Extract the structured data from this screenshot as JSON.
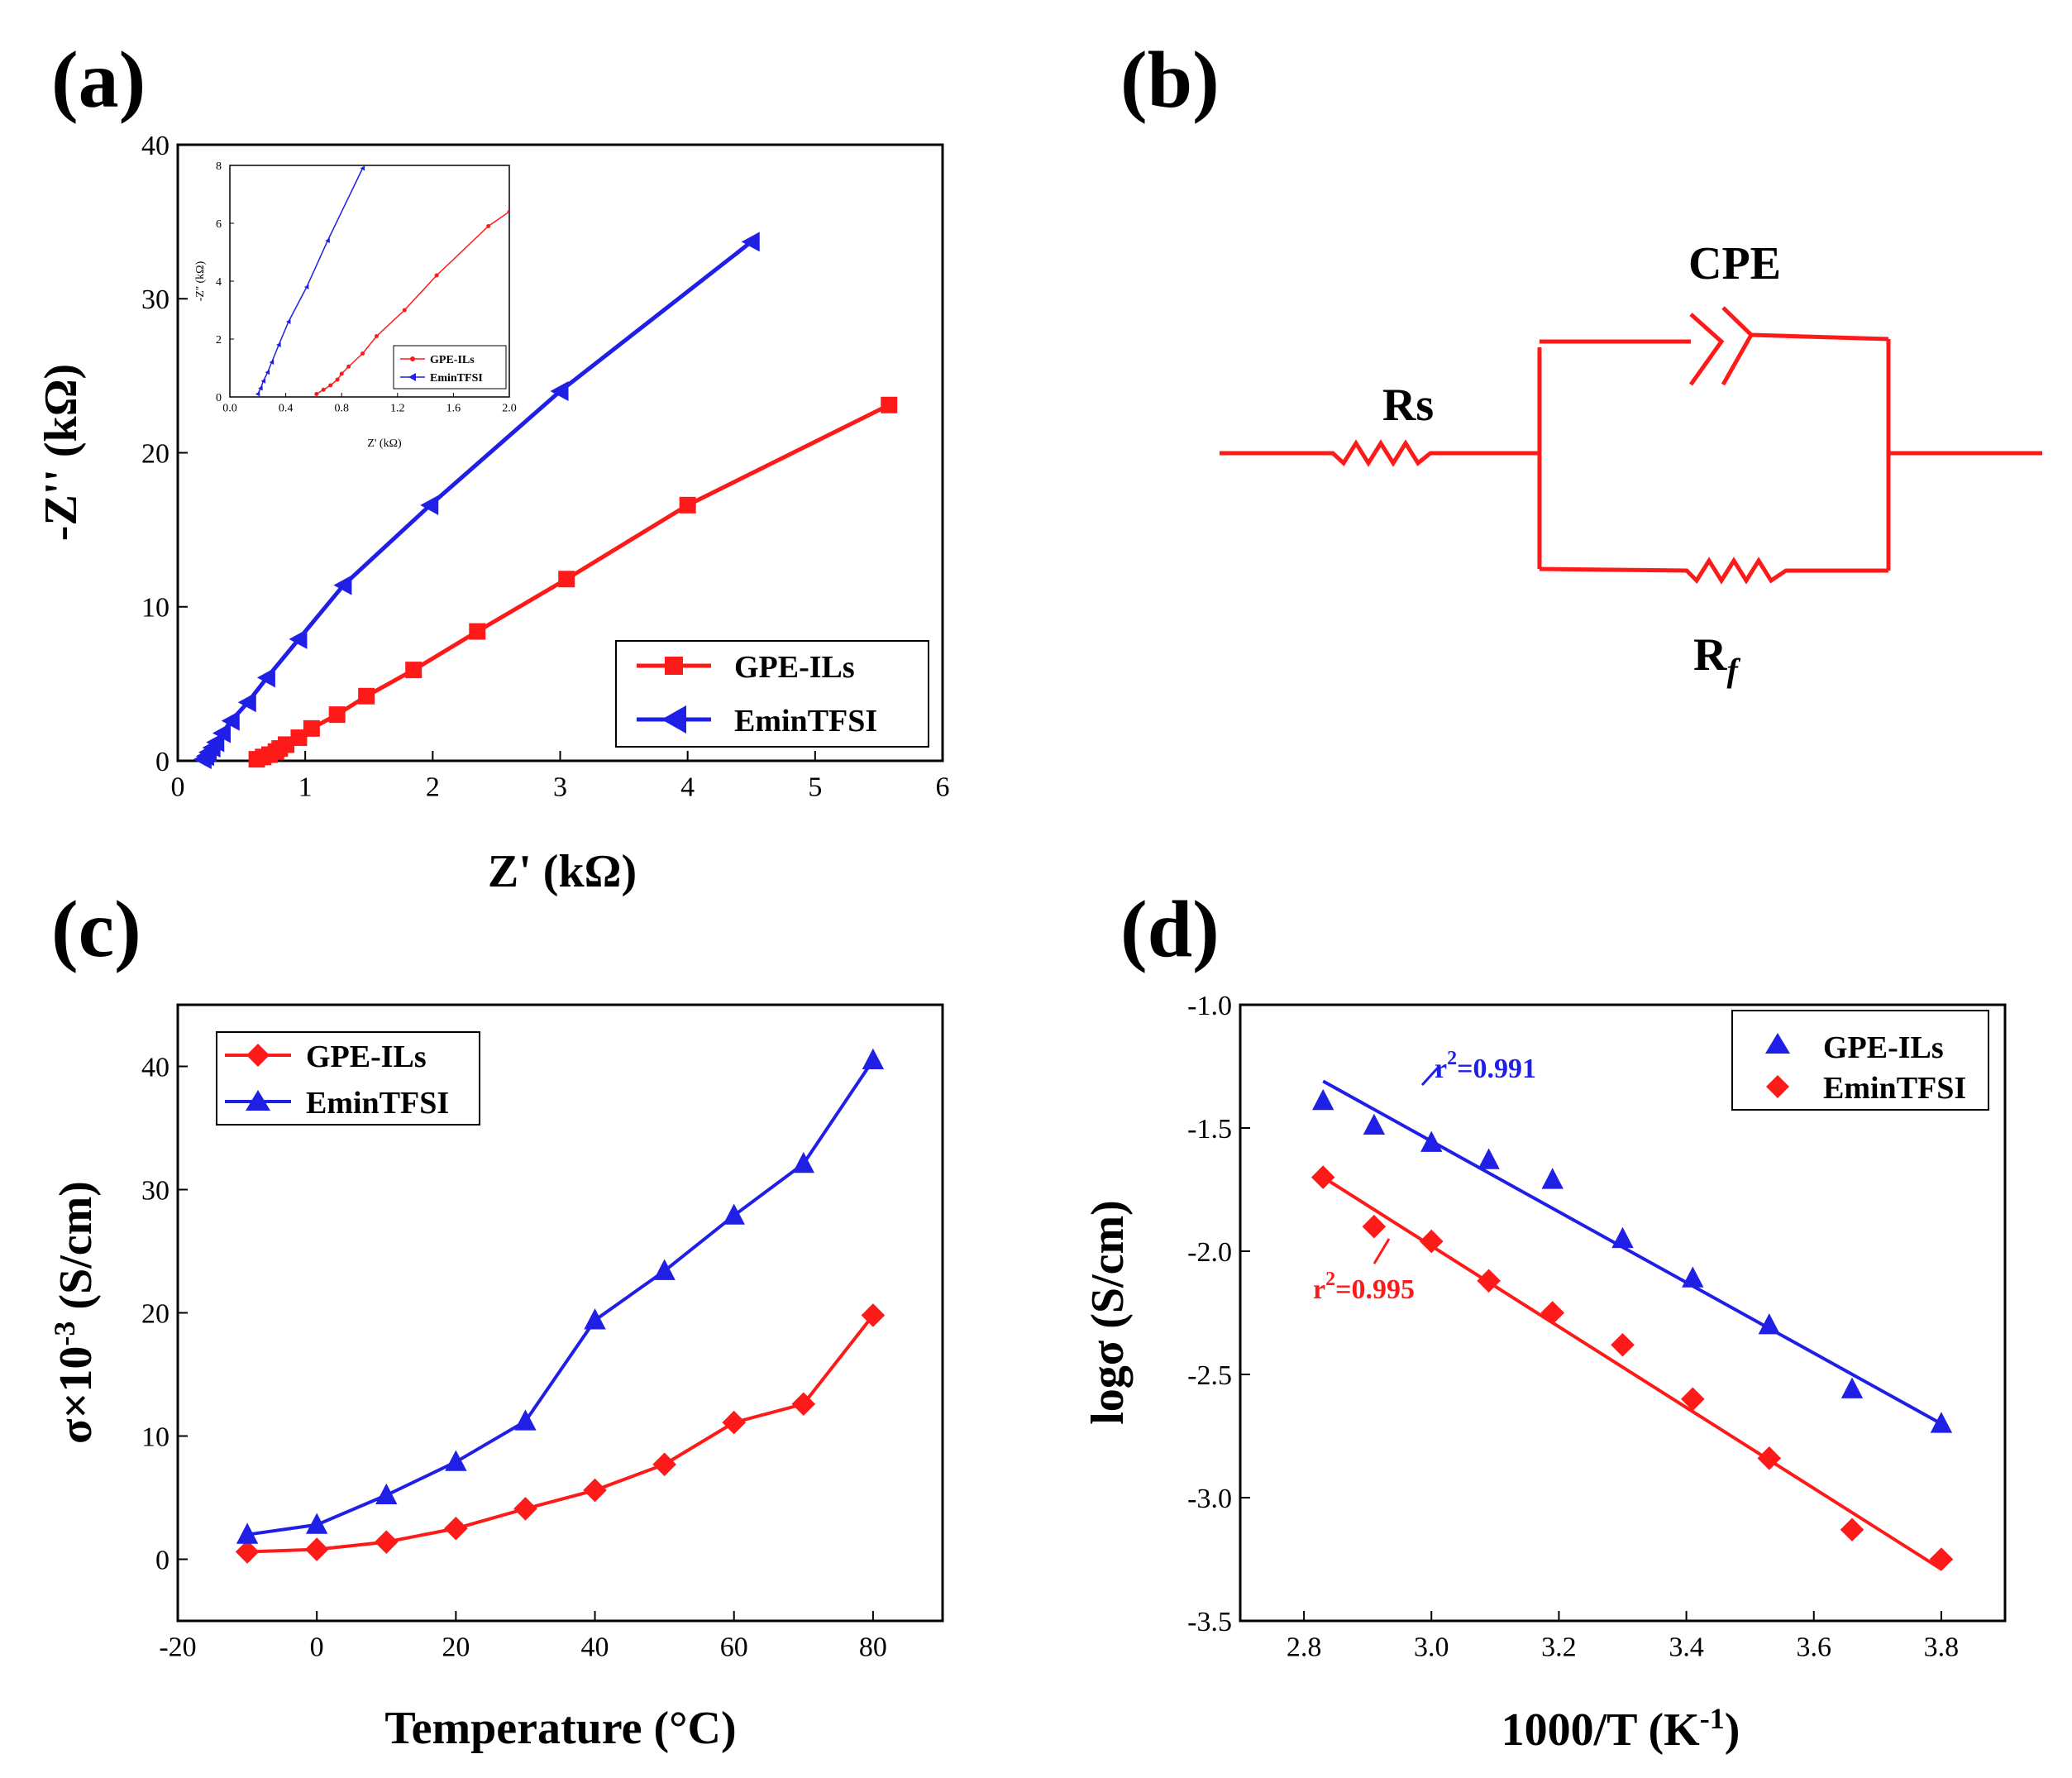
{
  "panel_labels": {
    "a": "(a)",
    "b": "(b)",
    "c": "(c)",
    "d": "(d)"
  },
  "colors": {
    "red": "#ff1a1a",
    "blue": "#1f1fe6",
    "black": "#000000"
  },
  "chart_data": [
    {
      "id": "a",
      "type": "line",
      "title": "",
      "xlabel": "Z' (kΩ)",
      "ylabel": "-Z'' (kΩ)",
      "xlim": [
        0,
        6
      ],
      "ylim": [
        0,
        40
      ],
      "xticks": [
        0,
        1,
        2,
        3,
        4,
        5,
        6
      ],
      "yticks": [
        0,
        10,
        20,
        30,
        40
      ],
      "legend_position": "bottom-right",
      "series": [
        {
          "name": "GPE-ILs",
          "color": "#ff1a1a",
          "marker": "square",
          "x": [
            0.62,
            0.67,
            0.72,
            0.77,
            0.8,
            0.85,
            0.95,
            1.05,
            1.25,
            1.48,
            1.85,
            2.35,
            3.05,
            4.0,
            5.58
          ],
          "y": [
            0.1,
            0.25,
            0.4,
            0.6,
            0.8,
            1.05,
            1.5,
            2.1,
            3.0,
            4.2,
            5.9,
            8.4,
            11.8,
            16.6,
            23.1
          ]
        },
        {
          "name": "EminTFSI",
          "color": "#1f1fe6",
          "marker": "triangle-left",
          "x": [
            0.2,
            0.22,
            0.24,
            0.27,
            0.3,
            0.35,
            0.42,
            0.55,
            0.7,
            0.95,
            1.3,
            1.98,
            3.0,
            4.5
          ],
          "y": [
            0.1,
            0.3,
            0.55,
            0.85,
            1.2,
            1.8,
            2.6,
            3.8,
            5.4,
            7.9,
            11.4,
            16.6,
            24.0,
            33.7
          ]
        }
      ],
      "inset": {
        "xlabel": "Z' (kΩ)",
        "ylabel": "-Z'' (kΩ)",
        "xlim": [
          0,
          2.0
        ],
        "ylim": [
          0,
          8
        ],
        "xticks": [
          "0.0",
          "0.4",
          "0.8",
          "1.2",
          "1.6",
          "2.0"
        ],
        "yticks": [
          "0",
          "2",
          "4",
          "6",
          "8"
        ],
        "legend_position": "bottom-right",
        "series": [
          {
            "name": "GPE-ILs",
            "color": "#ff1a1a",
            "x": [
              0.62,
              0.67,
              0.72,
              0.77,
              0.8,
              0.85,
              0.95,
              1.05,
              1.25,
              1.48,
              1.85,
              2.0
            ],
            "y": [
              0.1,
              0.25,
              0.4,
              0.6,
              0.8,
              1.05,
              1.5,
              2.1,
              3.0,
              4.2,
              5.9,
              6.4
            ]
          },
          {
            "name": "EminTFSI",
            "color": "#1f1fe6",
            "x": [
              0.2,
              0.22,
              0.24,
              0.27,
              0.3,
              0.35,
              0.42,
              0.55,
              0.7,
              0.95
            ],
            "y": [
              0.1,
              0.3,
              0.55,
              0.85,
              1.2,
              1.8,
              2.6,
              3.8,
              5.4,
              7.9
            ]
          }
        ]
      }
    },
    {
      "id": "c",
      "type": "line",
      "title": "",
      "xlabel": "Temperature (°C)",
      "ylabel_main": "σ×10",
      "ylabel_sup": "-3",
      "ylabel_rest": " (S/cm)",
      "xlim": [
        -20,
        90
      ],
      "ylim": [
        -5,
        45
      ],
      "xticks": [
        -20,
        0,
        20,
        40,
        60,
        80
      ],
      "yticks": [
        0,
        10,
        20,
        30,
        40
      ],
      "legend_position": "top-left",
      "series": [
        {
          "name": "GPE-ILs",
          "color": "#ff1a1a",
          "marker": "diamond",
          "x": [
            -10,
            0,
            10,
            20,
            30,
            40,
            50,
            60,
            70,
            80
          ],
          "y": [
            0.6,
            0.8,
            1.4,
            2.5,
            4.1,
            5.6,
            7.7,
            11.1,
            12.6,
            19.8
          ]
        },
        {
          "name": "EminTFSI",
          "color": "#1f1fe6",
          "marker": "triangle-up",
          "x": [
            -10,
            0,
            10,
            20,
            30,
            40,
            50,
            60,
            70,
            80
          ],
          "y": [
            2.0,
            2.8,
            5.2,
            7.9,
            11.2,
            19.4,
            23.4,
            27.9,
            32.1,
            40.5
          ]
        }
      ]
    },
    {
      "id": "d",
      "type": "scatter",
      "title": "",
      "xlabel_main": "1000/T (K",
      "xlabel_sup": "-1",
      "xlabel_rest": ")",
      "ylabel": "logσ (S/cm)",
      "xlim": [
        2.7,
        3.9
      ],
      "ylim": [
        -3.5,
        -1.0
      ],
      "xticks": [
        "2.8",
        "3.0",
        "3.2",
        "3.4",
        "3.6",
        "3.8"
      ],
      "yticks": [
        "-1.0",
        "-1.5",
        "-2.0",
        "-2.5",
        "-3.0",
        "-3.5"
      ],
      "legend_position": "top-right",
      "series": [
        {
          "name": "GPE-ILs",
          "color": "#1f1fe6",
          "marker": "triangle-up",
          "x": [
            2.83,
            2.91,
            3.0,
            3.09,
            3.19,
            3.3,
            3.41,
            3.53,
            3.66,
            3.8
          ],
          "y": [
            -1.39,
            -1.49,
            -1.56,
            -1.63,
            -1.71,
            -1.95,
            -2.11,
            -2.3,
            -2.56,
            -2.7
          ],
          "fit": {
            "x": [
              2.83,
              3.8
            ],
            "y": [
              -1.31,
              -2.7
            ]
          },
          "r2_base": "r",
          "r2_sup": "2",
          "r2_value": "=0.991"
        },
        {
          "name": "EminTFSI",
          "color": "#ff1a1a",
          "marker": "diamond",
          "x": [
            2.83,
            2.91,
            3.0,
            3.09,
            3.19,
            3.3,
            3.41,
            3.53,
            3.66,
            3.8
          ],
          "y": [
            -1.7,
            -1.9,
            -1.96,
            -2.12,
            -2.25,
            -2.38,
            -2.6,
            -2.84,
            -3.13,
            -3.25
          ],
          "fit": {
            "x": [
              2.83,
              3.8
            ],
            "y": [
              -1.7,
              -3.29
            ]
          },
          "r2_base": "r",
          "r2_sup": "2",
          "r2_value": "=0.995"
        }
      ]
    }
  ],
  "circuit": {
    "rs_label": "Rs",
    "cpe_label": "CPE",
    "rf_label_main": "R",
    "rf_label_sub": "f"
  }
}
